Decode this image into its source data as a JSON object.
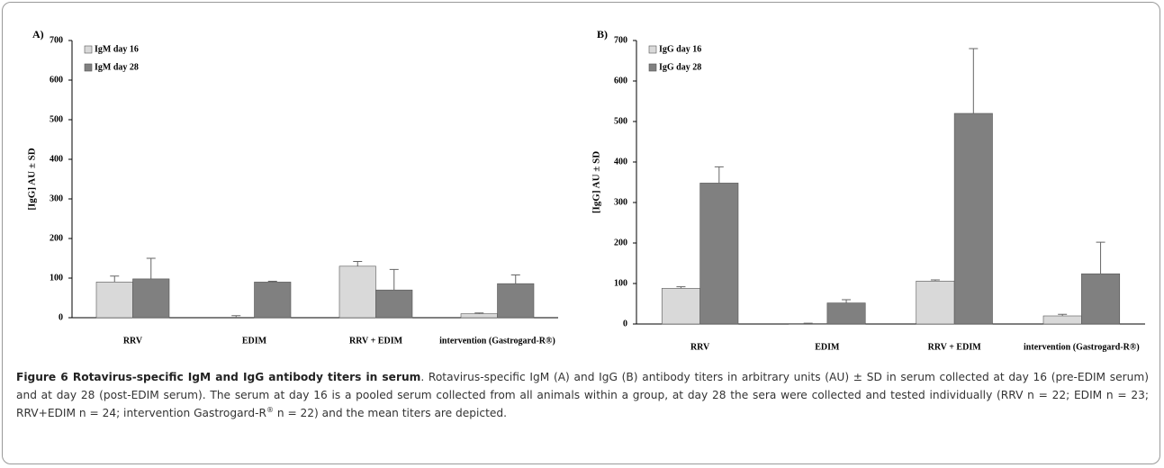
{
  "chart_data": [
    {
      "type": "bar",
      "panel": "A)",
      "y_label": "[IgG] AU ± SD",
      "categories": [
        "RRV",
        "EDIM",
        "RRV + EDIM",
        "intervention (Gastrogard-R®)"
      ],
      "series": [
        {
          "name": "IgM day 16",
          "color": "#d9d9d9",
          "values": [
            90,
            0,
            130,
            10
          ],
          "errors": [
            15,
            5,
            12,
            2
          ]
        },
        {
          "name": "IgM day 28",
          "color": "#808080",
          "values": [
            98,
            90,
            70,
            86
          ],
          "errors": [
            52,
            2,
            52,
            22
          ]
        }
      ],
      "ylim": [
        0,
        700
      ],
      "yticks": [
        0,
        100,
        200,
        300,
        400,
        500,
        600,
        700
      ]
    },
    {
      "type": "bar",
      "panel": "B)",
      "y_label": "[IgG] AU ± SD",
      "categories": [
        "RRV",
        "EDIM",
        "RRV + EDIM",
        "intervention (Gastrogard-R®)"
      ],
      "series": [
        {
          "name": "IgG day 16",
          "color": "#d9d9d9",
          "values": [
            88,
            1,
            106,
            20
          ],
          "errors": [
            4,
            1,
            3,
            4
          ]
        },
        {
          "name": "IgG day 28",
          "color": "#808080",
          "values": [
            348,
            52,
            520,
            124
          ],
          "errors": [
            40,
            8,
            160,
            78
          ]
        }
      ],
      "ylim": [
        0,
        700
      ],
      "yticks": [
        0,
        100,
        200,
        300,
        400,
        500,
        600,
        700
      ]
    }
  ],
  "caption": {
    "title": "Figure 6 Rotavirus-specific IgM and IgG antibody titers in serum",
    "text": ". Rotavirus-specific IgM (A) and IgG (B) antibody titers in arbitrary units (AU) ± SD in serum collected at day 16 (pre-EDIM serum) and at day 28 (post-EDIM serum). The serum at day 16 is a pooled serum collected from all animals within a group, at day 28 the sera were collected and tested individually (RRV n = 22; EDIM n = 23; RRV+EDIM n = 24; intervention Gastrogard-R",
    "sup": "®",
    "end": " n = 22) and the mean titers are depicted."
  }
}
